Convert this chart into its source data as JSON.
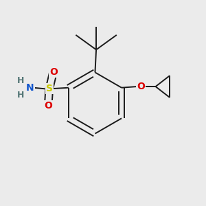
{
  "background_color": "#ebebeb",
  "bond_color": "#1a1a1a",
  "atoms": {
    "S": {
      "color": "#cccc00",
      "fontsize": 10
    },
    "O": {
      "color": "#dd0000",
      "fontsize": 10
    },
    "N": {
      "color": "#1155cc",
      "fontsize": 10
    },
    "H": {
      "color": "#557777",
      "fontsize": 9
    }
  },
  "line_width": 1.4,
  "dbo": 0.012
}
